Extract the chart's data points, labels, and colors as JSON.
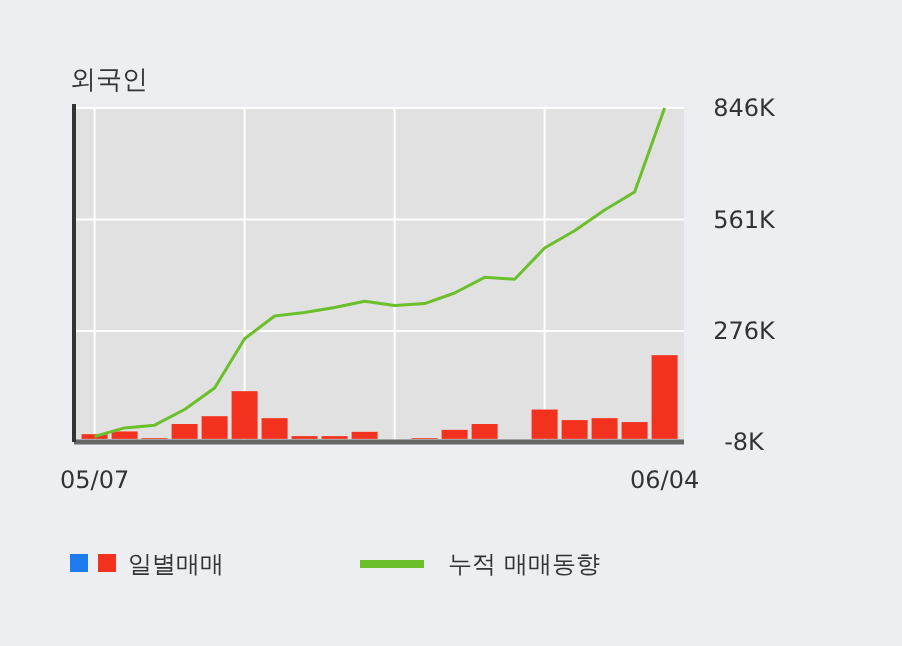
{
  "chart_data": {
    "type": "bar",
    "title": "외국인",
    "categories": [
      "05/07",
      null,
      null,
      null,
      null,
      null,
      null,
      null,
      null,
      null,
      null,
      null,
      null,
      null,
      null,
      null,
      null,
      null,
      null,
      "06/04"
    ],
    "series": [
      {
        "name": "일별매매",
        "color": "#f2321f",
        "values": [
          12,
          19,
          2,
          38,
          58,
          122,
          53,
          7,
          7,
          18,
          0,
          2,
          23,
          38,
          0,
          75,
          48,
          53,
          43,
          214
        ]
      },
      {
        "name": "누적 매매동향",
        "type": "line",
        "color": "#6abf2a",
        "values": [
          6,
          28,
          35,
          75,
          130,
          256,
          314,
          323,
          336,
          352,
          341,
          346,
          373,
          413,
          408,
          488,
          532,
          585,
          631,
          846
        ]
      }
    ],
    "ylim": [
      -8,
      846
    ],
    "yticks": [
      {
        "value": -8,
        "label": "-8K"
      },
      {
        "value": 276,
        "label": "276K"
      },
      {
        "value": 561,
        "label": "561K"
      },
      {
        "value": 846,
        "label": "846K"
      }
    ],
    "grid": true,
    "legend": "bottom",
    "marker": "none"
  }
}
